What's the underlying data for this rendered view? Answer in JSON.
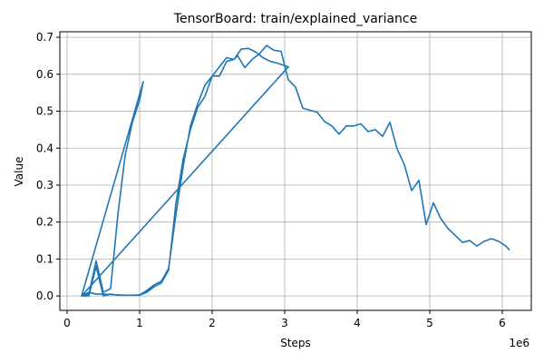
{
  "chart_data": {
    "type": "line",
    "title": "TensorBoard: train/explained_variance",
    "x_label": "Steps",
    "y_label": "Value",
    "x_offset_label": "1e6",
    "x": [
      200000,
      300000,
      400000,
      500000,
      600000,
      700000,
      800000,
      900000,
      1000000,
      1050000,
      200000,
      300000,
      400000,
      500000,
      600000,
      700000,
      800000,
      900000,
      1000000,
      1100000,
      1200000,
      1300000,
      1400000,
      1500000,
      1600000,
      1700000,
      1800000,
      1900000,
      2000000,
      2100000,
      2200000,
      2300000,
      2400000,
      2500000,
      2600000,
      2700000,
      2800000,
      2900000,
      3050000,
      200000,
      300000,
      400000,
      500000,
      600000,
      700000,
      800000,
      900000,
      1000000,
      1100000,
      1200000,
      1300000,
      1400000,
      1500000,
      1600000,
      1700000,
      1800000,
      1900000,
      2000000,
      2100000,
      2200000,
      2300000,
      2350000,
      2450000,
      2550000,
      2650000,
      2750000,
      2850000,
      2950000,
      3050000,
      3150000,
      3250000,
      3450000,
      3550000,
      3650000,
      3750000,
      3850000,
      3950000,
      4050000,
      4150000,
      4250000,
      4350000,
      4450000,
      4550000,
      4650000,
      4750000,
      4850000,
      4950000,
      5050000,
      5150000,
      5250000,
      5350000,
      5450000,
      5550000,
      5650000,
      5750000,
      5850000,
      5950000,
      6050000,
      6100000
    ],
    "series": [
      {
        "name": "train/explained_variance",
        "color": "#1f77b4",
        "values": [
          0.0,
          0.005,
          0.095,
          0.01,
          0.02,
          0.22,
          0.38,
          0.47,
          0.53,
          0.58,
          0.0,
          0.0,
          0.08,
          0.0,
          0.005,
          0.002,
          0.002,
          0.002,
          0.003,
          0.015,
          0.03,
          0.04,
          0.075,
          0.22,
          0.35,
          0.46,
          0.52,
          0.57,
          0.595,
          0.62,
          0.645,
          0.64,
          0.668,
          0.67,
          0.66,
          0.645,
          0.635,
          0.63,
          0.62,
          0.0,
          0.01,
          0.005,
          0.005,
          0.004,
          0.003,
          0.002,
          0.002,
          0.002,
          0.01,
          0.025,
          0.035,
          0.07,
          0.25,
          0.37,
          0.45,
          0.51,
          0.54,
          0.595,
          0.595,
          0.635,
          0.64,
          0.65,
          0.618,
          0.64,
          0.655,
          0.678,
          0.665,
          0.662,
          0.585,
          0.565,
          0.508,
          0.497,
          0.472,
          0.46,
          0.438,
          0.46,
          0.46,
          0.466,
          0.445,
          0.45,
          0.432,
          0.47,
          0.398,
          0.355,
          0.285,
          0.313,
          0.193,
          0.252,
          0.21,
          0.183,
          0.164,
          0.145,
          0.15,
          0.135,
          0.148,
          0.155,
          0.148,
          0.135,
          0.124
        ]
      }
    ],
    "xlim": [
      -100000,
      6400000
    ],
    "xticks": [
      0,
      {
        "value": 1000000,
        "label": "1"
      },
      {
        "value": 2000000,
        "label": "2"
      },
      {
        "value": 3000000,
        "label": "3"
      },
      {
        "value": 4000000,
        "label": "4"
      },
      {
        "value": 5000000,
        "label": "5"
      },
      {
        "value": 6000000,
        "label": "6"
      }
    ],
    "ylim": [
      -0.039,
      0.715
    ],
    "yticks": [
      {
        "value": 0,
        "label": "0.0"
      },
      0.1,
      0.2,
      0.3,
      0.4,
      0.5,
      0.6,
      0.7
    ],
    "grid": true
  }
}
